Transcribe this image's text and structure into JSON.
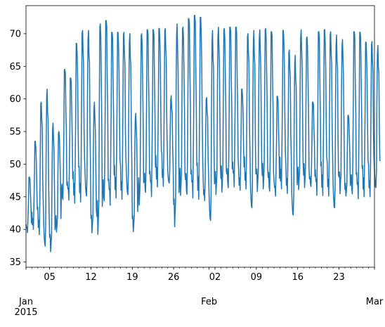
{
  "chart_data": {
    "type": "line",
    "title": "",
    "xlabel": "",
    "ylabel": "",
    "x_range": [
      "2015-01-01T00:00",
      "2015-03-01T00:00"
    ],
    "ylim": [
      34.2,
      74.3
    ],
    "grid": false,
    "legend": "none",
    "line_color": "#1f77b4",
    "yticks": [
      35,
      40,
      45,
      50,
      55,
      60,
      65,
      70
    ],
    "xticks_minor_labels": [
      {
        "date": "2015-01-05",
        "label": "05"
      },
      {
        "date": "2015-01-12",
        "label": "12"
      },
      {
        "date": "2015-01-19",
        "label": "19"
      },
      {
        "date": "2015-01-26",
        "label": "26"
      },
      {
        "date": "2015-02-02",
        "label": "02"
      },
      {
        "date": "2015-02-09",
        "label": "09"
      },
      {
        "date": "2015-02-16",
        "label": "16"
      },
      {
        "date": "2015-02-23",
        "label": "23"
      }
    ],
    "xticks_major_labels": [
      {
        "date": "2015-01-01",
        "label": "Jan\n2015"
      },
      {
        "date": "2015-02-01",
        "label": "Feb"
      },
      {
        "date": "2015-03-01",
        "label": "Mar"
      }
    ],
    "series": [
      {
        "daily_min": [
          39.5,
          40,
          39.2,
          36.4,
          36.3,
          39.5,
          44,
          44.5,
          44,
          44.2,
          44,
          39.2,
          39,
          43.6,
          43.7,
          44.8,
          44.6,
          44.2,
          39.4,
          43.5,
          45,
          45,
          46.5,
          46.6,
          46.5,
          40,
          45,
          44.7,
          44.8,
          44.6,
          44.4,
          40,
          45,
          45.5,
          45.8,
          46.5,
          46,
          46.2,
          42,
          45.5,
          46,
          45.3,
          45.1,
          46.2,
          45.5,
          41,
          45.8,
          46.2,
          46.3,
          45.2,
          45.2,
          45.1,
          42,
          45.2,
          45,
          44.9,
          44.7,
          45,
          45,
          45.3
        ],
        "daily_max": [
          48,
          53.5,
          59.5,
          61.5,
          56.3,
          55,
          64.5,
          63.2,
          68.5,
          70.5,
          70.5,
          59.5,
          71.5,
          72,
          70.2,
          70.2,
          70.2,
          70,
          57.8,
          70,
          70.6,
          70.6,
          70.8,
          70.8,
          60.5,
          71.5,
          71,
          72.3,
          72.8,
          72.5,
          60.2,
          70.5,
          71,
          70.8,
          71,
          71,
          61.5,
          70,
          70.5,
          70.6,
          70.8,
          70.3,
          60.4,
          70.5,
          67.5,
          66.7,
          70.6,
          69.5,
          59.5,
          70.3,
          70.6,
          70.3,
          69.8,
          69.1,
          57.5,
          70.3,
          70.2,
          68.7,
          68.8,
          68.2
        ]
      }
    ]
  }
}
